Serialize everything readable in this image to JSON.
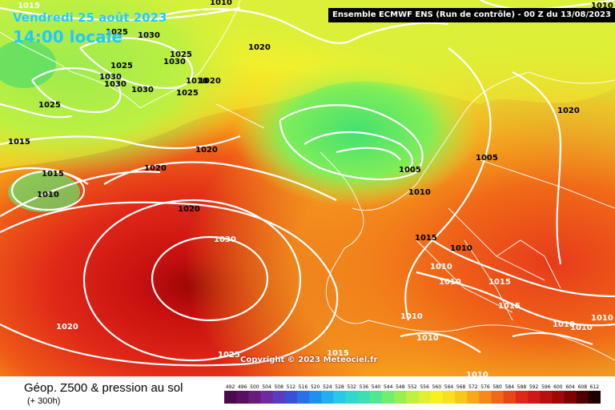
{
  "header": {
    "date": "Vendredi 25 août 2023",
    "local_time": "14:00 locale",
    "model_run": "Ensemble ECMWF ENS  (Run de contrôle)  - 00 Z du 13/08/2023"
  },
  "map": {
    "copyright": "Copyright © 2023 Meteociel.fr",
    "pressure_labels": [
      {
        "text": "1015",
        "lat": 0,
        "at": "top-left"
      },
      {
        "text": "1010",
        "at": "top-center"
      },
      {
        "text": "1025",
        "at": "greenland-north"
      },
      {
        "text": "1030",
        "at": "greenland-north-east"
      },
      {
        "text": "1020",
        "at": "greenland-east"
      },
      {
        "text": "1025",
        "at": "greenland"
      },
      {
        "text": "1030",
        "at": "greenland"
      },
      {
        "text": "1025",
        "at": "greenland"
      },
      {
        "text": "1030",
        "at": "greenland"
      },
      {
        "text": "1025",
        "at": "greenland-south"
      },
      {
        "text": "1010",
        "at": "greenland-south"
      },
      {
        "text": "1020",
        "at": "greenland-south"
      },
      {
        "text": "1030",
        "at": "greenland"
      },
      {
        "text": "1030",
        "at": "greenland"
      },
      {
        "text": "1025",
        "at": "iceland"
      },
      {
        "text": "1020",
        "at": "west-atlantic"
      },
      {
        "text": "1020",
        "at": "mid-atlantic"
      },
      {
        "text": "1015",
        "at": "west-atlantic"
      },
      {
        "text": "1010",
        "at": "west-atlantic-low"
      },
      {
        "text": "1015",
        "at": "mid-atlantic"
      },
      {
        "text": "1020",
        "at": "azores-ring"
      },
      {
        "text": "1030",
        "at": "azores-high"
      },
      {
        "text": "1020",
        "at": "south-west"
      },
      {
        "text": "1025",
        "at": "south-atlantic"
      },
      {
        "text": "1005",
        "at": "north-sea"
      },
      {
        "text": "1010",
        "at": "north-sea"
      },
      {
        "text": "1005",
        "at": "scandinavia"
      },
      {
        "text": "1020",
        "at": "russia"
      },
      {
        "text": "1010",
        "at": "top-right"
      },
      {
        "text": "1015",
        "at": "france"
      },
      {
        "text": "1010",
        "at": "alps"
      },
      {
        "text": "1010",
        "at": "alps"
      },
      {
        "text": "1010",
        "at": "italy"
      },
      {
        "text": "1015",
        "at": "balkans"
      },
      {
        "text": "1015",
        "at": "greece"
      },
      {
        "text": "1010",
        "at": "east-med"
      },
      {
        "text": "1010",
        "at": "east-med"
      },
      {
        "text": "1010",
        "at": "east-med"
      },
      {
        "text": "1010",
        "at": "south-med"
      },
      {
        "text": "1010",
        "at": "south-med"
      },
      {
        "text": "1015",
        "at": "south"
      },
      {
        "text": "1010",
        "at": "bottom"
      }
    ]
  },
  "footer": {
    "product_title": "Géop. Z500 & pression au sol",
    "lead_time": "(+ 300h)",
    "legend_values": [
      "492",
      "496",
      "500",
      "504",
      "508",
      "512",
      "516",
      "520",
      "524",
      "528",
      "532",
      "536",
      "540",
      "544",
      "548",
      "552",
      "556",
      "560",
      "564",
      "568",
      "572",
      "576",
      "580",
      "584",
      "588",
      "592",
      "596",
      "600",
      "604",
      "608",
      "612"
    ],
    "legend_colors": [
      "#4b0a4b",
      "#5a1060",
      "#6a1a7a",
      "#6e2aa0",
      "#5a3cc0",
      "#3a50d8",
      "#2a70e8",
      "#1e90f0",
      "#20b0f0",
      "#28c8e8",
      "#30d8d0",
      "#3ce0b0",
      "#50e890",
      "#70ee70",
      "#98f050",
      "#c0f040",
      "#e0f030",
      "#f8f020",
      "#f8e020",
      "#f8c818",
      "#f8a818",
      "#f88818",
      "#f06818",
      "#e84818",
      "#e02818",
      "#d01818",
      "#b81010",
      "#a00808",
      "#800000",
      "#500000",
      "#200000"
    ]
  }
}
